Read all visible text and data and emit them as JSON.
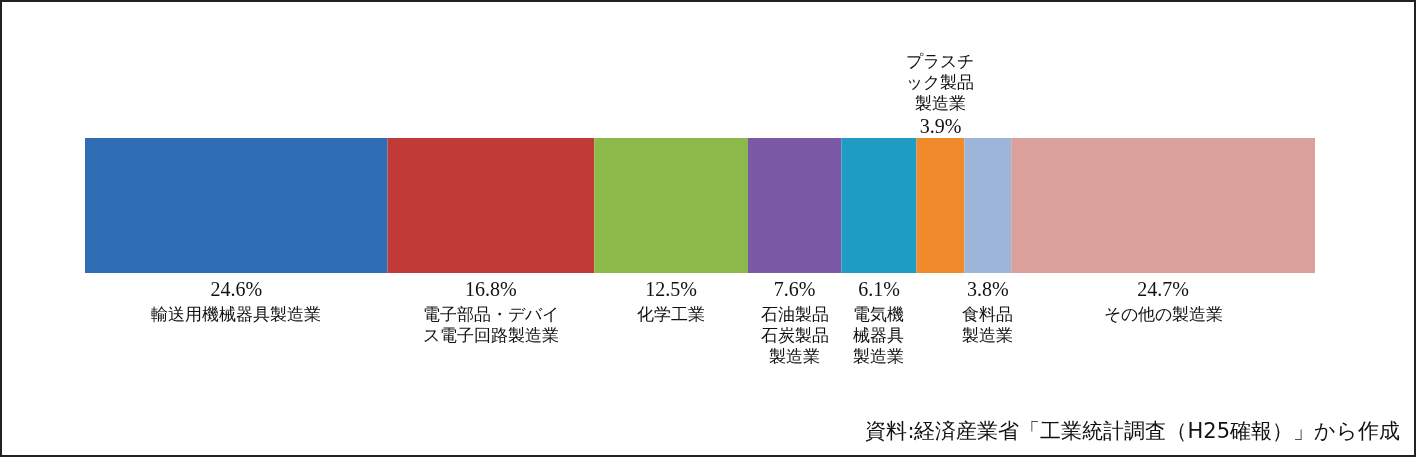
{
  "chart_data": {
    "type": "bar",
    "orientation": "horizontal",
    "stacked": true,
    "categories": [
      null
    ],
    "xlim": [
      0,
      100
    ],
    "tick_labels": false,
    "series": [
      {
        "name": "輸送用機械器具製造業",
        "color": "#2f6eb5",
        "values": [
          24.6
        ],
        "value_labels": [
          "24.6%"
        ]
      },
      {
        "name": "電子部品・デバイス電子回路製造業",
        "color": "#c03a37",
        "values": [
          16.8
        ],
        "value_labels": [
          "16.8%"
        ]
      },
      {
        "name": "化学工業",
        "color": "#8db84a",
        "values": [
          12.5
        ],
        "value_labels": [
          "12.5%"
        ]
      },
      {
        "name": "石油製品石炭製品製造業",
        "color": "#7a5aa6",
        "values": [
          7.6
        ],
        "value_labels": [
          "7.6%"
        ]
      },
      {
        "name": "電気機械器具製造業",
        "color": "#1f9cc1",
        "values": [
          6.1
        ],
        "value_labels": [
          "6.1%"
        ]
      },
      {
        "name": "プラスチック製品製造業",
        "color": "#f08a2b",
        "values": [
          3.9
        ],
        "value_labels": [
          "3.9%"
        ]
      },
      {
        "name": "食料品製造業",
        "color": "#9db5d8",
        "values": [
          3.8
        ],
        "value_labels": [
          "3.8%"
        ]
      },
      {
        "name": "その他の製造業",
        "color": "#d9a09c",
        "values": [
          24.7
        ],
        "value_labels": [
          "24.7%"
        ]
      }
    ],
    "annotations": [
      "資料:経済産業省「工業統計調査（H25確報）」から作成"
    ]
  }
}
